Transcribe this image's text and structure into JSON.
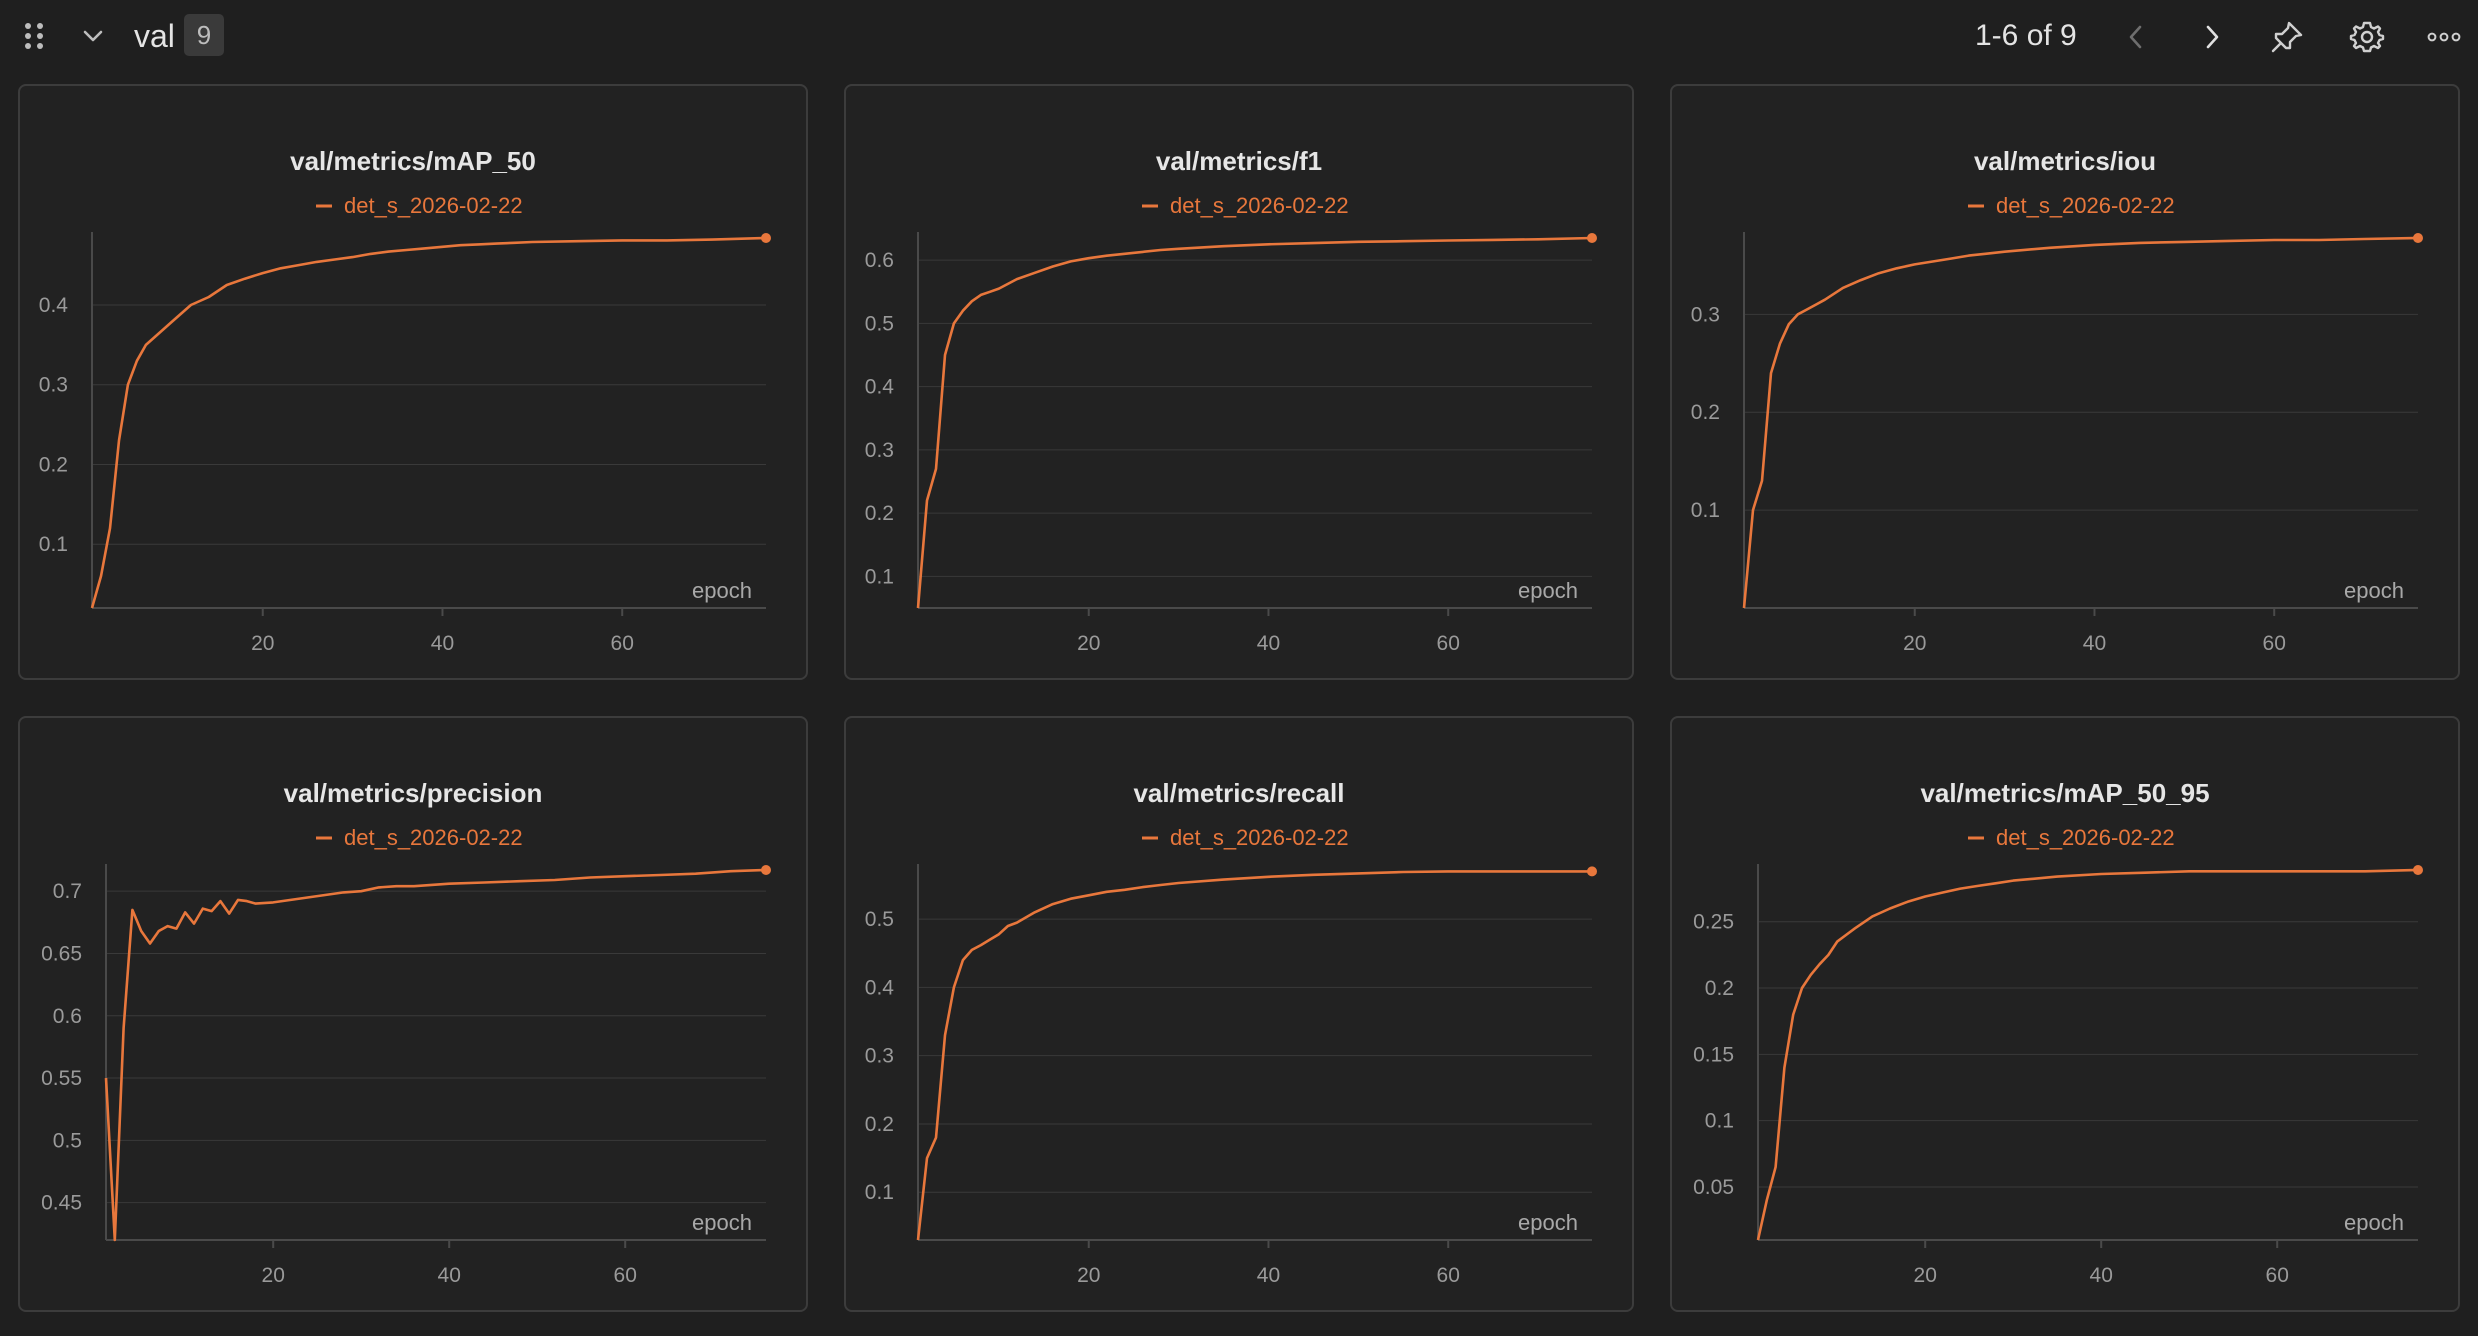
{
  "header": {
    "section_name": "val",
    "count": "9",
    "page_info": "1-6 of 9",
    "icons": {
      "drag": "drag-handle-icon",
      "collapse": "chevron-down-icon",
      "prev": "chevron-left-icon",
      "next": "chevron-right-icon",
      "pin": "pin-icon",
      "settings": "gear-icon",
      "more": "more-horizontal-icon"
    }
  },
  "colors": {
    "accent": "#e8773c",
    "background": "#1f1f1f",
    "panel": "#222222",
    "grid": "#3a3a3a"
  },
  "chart_data": [
    {
      "type": "line",
      "title": "val/metrics/mAP_50",
      "xlabel": "epoch",
      "ylabel": "",
      "xlim": [
        1,
        76
      ],
      "ylim": [
        0.02,
        0.484
      ],
      "xticks": [
        20,
        40,
        60
      ],
      "yticks": [
        0.1,
        0.2,
        0.3,
        0.4
      ],
      "ytick_labels": [
        "0.1",
        "0.2",
        "0.3",
        "0.4"
      ],
      "grid": true,
      "legend": "top-center",
      "series": [
        {
          "name": "det_s_2026-02-22",
          "x": [
            1,
            2,
            3,
            4,
            5,
            6,
            7,
            8,
            9,
            10,
            12,
            14,
            16,
            18,
            20,
            22,
            24,
            26,
            28,
            30,
            32,
            34,
            36,
            38,
            40,
            42,
            44,
            46,
            48,
            50,
            55,
            60,
            65,
            70,
            76
          ],
          "y": [
            0.02,
            0.06,
            0.12,
            0.23,
            0.3,
            0.33,
            0.35,
            0.36,
            0.37,
            0.38,
            0.4,
            0.41,
            0.425,
            0.433,
            0.44,
            0.446,
            0.45,
            0.454,
            0.457,
            0.46,
            0.464,
            0.467,
            0.469,
            0.471,
            0.473,
            0.475,
            0.476,
            0.477,
            0.478,
            0.479,
            0.48,
            0.481,
            0.481,
            0.482,
            0.484
          ]
        }
      ]
    },
    {
      "type": "line",
      "title": "val/metrics/f1",
      "xlabel": "epoch",
      "ylabel": "",
      "xlim": [
        1,
        76
      ],
      "ylim": [
        0.05,
        0.635
      ],
      "xticks": [
        20,
        40,
        60
      ],
      "yticks": [
        0.1,
        0.2,
        0.3,
        0.4,
        0.5,
        0.6
      ],
      "ytick_labels": [
        "0.1",
        "0.2",
        "0.3",
        "0.4",
        "0.5",
        "0.6"
      ],
      "grid": true,
      "legend": "top-center",
      "series": [
        {
          "name": "det_s_2026-02-22",
          "x": [
            1,
            2,
            3,
            4,
            5,
            6,
            7,
            8,
            9,
            10,
            12,
            14,
            16,
            18,
            20,
            22,
            24,
            26,
            28,
            30,
            35,
            40,
            45,
            50,
            55,
            60,
            65,
            70,
            76
          ],
          "y": [
            0.05,
            0.22,
            0.27,
            0.45,
            0.5,
            0.52,
            0.535,
            0.545,
            0.55,
            0.555,
            0.57,
            0.58,
            0.59,
            0.598,
            0.603,
            0.607,
            0.61,
            0.613,
            0.616,
            0.618,
            0.622,
            0.625,
            0.627,
            0.629,
            0.63,
            0.631,
            0.632,
            0.633,
            0.635
          ]
        }
      ]
    },
    {
      "type": "line",
      "title": "val/metrics/iou",
      "xlabel": "epoch",
      "ylabel": "",
      "xlim": [
        1,
        76
      ],
      "ylim": [
        0.0,
        0.378
      ],
      "xticks": [
        20,
        40,
        60
      ],
      "yticks": [
        0.1,
        0.2,
        0.3
      ],
      "ytick_labels": [
        "0.1",
        "0.2",
        "0.3"
      ],
      "grid": true,
      "legend": "top-center",
      "series": [
        {
          "name": "det_s_2026-02-22",
          "x": [
            1,
            2,
            3,
            4,
            5,
            6,
            7,
            8,
            9,
            10,
            12,
            14,
            16,
            18,
            20,
            22,
            24,
            26,
            28,
            30,
            35,
            40,
            45,
            50,
            55,
            60,
            65,
            70,
            76
          ],
          "y": [
            0.0,
            0.1,
            0.13,
            0.24,
            0.27,
            0.29,
            0.3,
            0.305,
            0.31,
            0.315,
            0.327,
            0.335,
            0.342,
            0.347,
            0.351,
            0.354,
            0.357,
            0.36,
            0.362,
            0.364,
            0.368,
            0.371,
            0.373,
            0.374,
            0.375,
            0.376,
            0.376,
            0.377,
            0.378
          ]
        }
      ]
    },
    {
      "type": "line",
      "title": "val/metrics/precision",
      "xlabel": "epoch",
      "ylabel": "",
      "xlim": [
        1,
        76
      ],
      "ylim": [
        0.42,
        0.717
      ],
      "xticks": [
        20,
        40,
        60
      ],
      "yticks": [
        0.45,
        0.5,
        0.55,
        0.6,
        0.65,
        0.7
      ],
      "ytick_labels": [
        "0.45",
        "0.5",
        "0.55",
        "0.6",
        "0.65",
        "0.7"
      ],
      "grid": true,
      "legend": "top-center",
      "series": [
        {
          "name": "det_s_2026-02-22",
          "x": [
            1,
            2,
            3,
            4,
            5,
            6,
            7,
            8,
            9,
            10,
            11,
            12,
            13,
            14,
            15,
            16,
            17,
            18,
            20,
            22,
            24,
            26,
            28,
            30,
            32,
            34,
            36,
            38,
            40,
            44,
            48,
            52,
            56,
            60,
            64,
            68,
            72,
            76
          ],
          "y": [
            0.55,
            0.42,
            0.59,
            0.685,
            0.668,
            0.658,
            0.668,
            0.672,
            0.67,
            0.683,
            0.674,
            0.686,
            0.684,
            0.692,
            0.682,
            0.693,
            0.692,
            0.69,
            0.691,
            0.693,
            0.695,
            0.697,
            0.699,
            0.7,
            0.703,
            0.704,
            0.704,
            0.705,
            0.706,
            0.707,
            0.708,
            0.709,
            0.711,
            0.712,
            0.713,
            0.714,
            0.716,
            0.717
          ]
        }
      ]
    },
    {
      "type": "line",
      "title": "val/metrics/recall",
      "xlabel": "epoch",
      "ylabel": "",
      "xlim": [
        1,
        76
      ],
      "ylim": [
        0.03,
        0.572
      ],
      "xticks": [
        20,
        40,
        60
      ],
      "yticks": [
        0.1,
        0.2,
        0.3,
        0.4,
        0.5
      ],
      "ytick_labels": [
        "0.1",
        "0.2",
        "0.3",
        "0.4",
        "0.5"
      ],
      "grid": true,
      "legend": "top-center",
      "series": [
        {
          "name": "det_s_2026-02-22",
          "x": [
            1,
            2,
            3,
            4,
            5,
            6,
            7,
            8,
            9,
            10,
            11,
            12,
            14,
            16,
            18,
            20,
            22,
            24,
            26,
            28,
            30,
            35,
            40,
            45,
            50,
            55,
            60,
            65,
            70,
            76
          ],
          "y": [
            0.03,
            0.15,
            0.18,
            0.33,
            0.4,
            0.44,
            0.455,
            0.462,
            0.47,
            0.478,
            0.49,
            0.495,
            0.51,
            0.522,
            0.53,
            0.535,
            0.54,
            0.543,
            0.547,
            0.55,
            0.553,
            0.558,
            0.562,
            0.565,
            0.567,
            0.569,
            0.57,
            0.57,
            0.57,
            0.57
          ]
        }
      ]
    },
    {
      "type": "line",
      "title": "val/metrics/mAP_50_95",
      "xlabel": "epoch",
      "ylabel": "",
      "xlim": [
        1,
        76
      ],
      "ylim": [
        0.01,
        0.289
      ],
      "xticks": [
        20,
        40,
        60
      ],
      "yticks": [
        0.05,
        0.1,
        0.15,
        0.2,
        0.25
      ],
      "ytick_labels": [
        "0.05",
        "0.1",
        "0.15",
        "0.2",
        "0.25"
      ],
      "grid": true,
      "legend": "top-center",
      "series": [
        {
          "name": "det_s_2026-02-22",
          "x": [
            1,
            2,
            3,
            4,
            5,
            6,
            7,
            8,
            9,
            10,
            11,
            12,
            14,
            16,
            18,
            20,
            22,
            24,
            26,
            28,
            30,
            35,
            40,
            45,
            50,
            55,
            60,
            65,
            70,
            76
          ],
          "y": [
            0.01,
            0.04,
            0.065,
            0.14,
            0.18,
            0.2,
            0.21,
            0.218,
            0.225,
            0.235,
            0.24,
            0.245,
            0.254,
            0.26,
            0.265,
            0.269,
            0.272,
            0.275,
            0.277,
            0.279,
            0.281,
            0.284,
            0.286,
            0.287,
            0.288,
            0.288,
            0.288,
            0.288,
            0.288,
            0.289
          ]
        }
      ]
    }
  ]
}
